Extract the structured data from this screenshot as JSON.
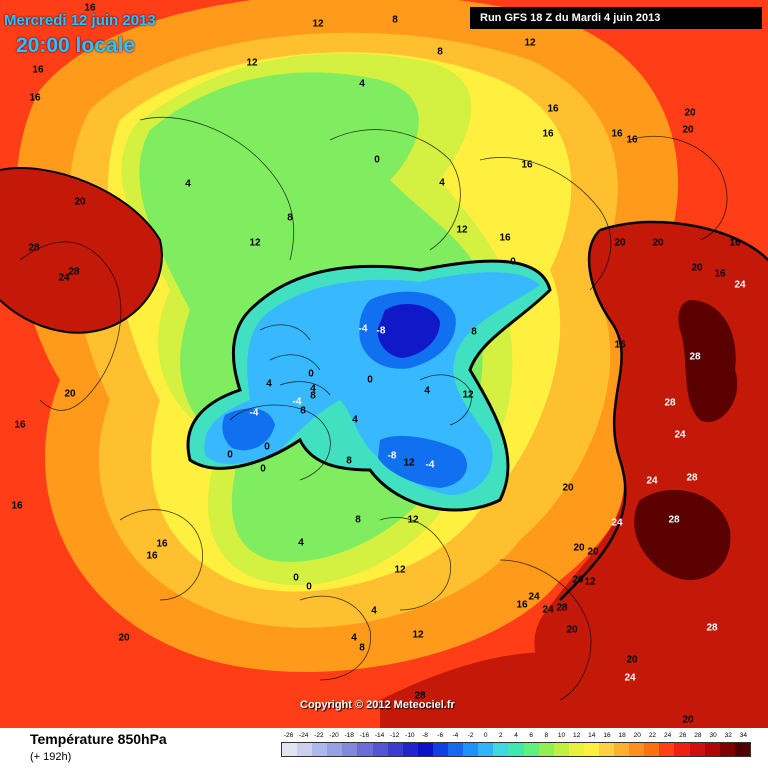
{
  "header": {
    "date": "Mercredi 12 juin 2013",
    "time": "20:00 locale",
    "run": "Run GFS 18 Z du Mardi 4 juin 2013"
  },
  "copyright": "Copyright © 2012 Meteociel.fr",
  "legend": {
    "title": "Température 850hPa",
    "lead": "(+ 192h)",
    "ticks": [
      "-26",
      "-24",
      "-22",
      "-20",
      "-18",
      "-16",
      "-14",
      "-12",
      "-10",
      "-8",
      "-6",
      "-4",
      "-2",
      "0",
      "2",
      "4",
      "6",
      "8",
      "10",
      "12",
      "14",
      "16",
      "18",
      "20",
      "22",
      "24",
      "26",
      "28",
      "30",
      "32",
      "34"
    ],
    "colors": [
      "#e4e4f0",
      "#ccd0ec",
      "#b0b8e8",
      "#98a0e4",
      "#8488dc",
      "#6c6cd8",
      "#5454d4",
      "#3c3cd0",
      "#2424cc",
      "#0c10c8",
      "#1040e0",
      "#1868f0",
      "#2090ff",
      "#30b4ff",
      "#40d8e0",
      "#40e8b0",
      "#60f080",
      "#90f050",
      "#c0f040",
      "#e8f040",
      "#fff040",
      "#ffd040",
      "#ffb030",
      "#ff9020",
      "#ff7010",
      "#ff4010",
      "#f02010",
      "#d01010",
      "#b00808",
      "#800000",
      "#500000"
    ]
  },
  "map": {
    "colors": {
      "hot": "#c41808",
      "very_hot": "#5a0000",
      "warm_red": "#ff3e18",
      "orange": "#ff9a1a",
      "light_orange": "#ffc030",
      "yellow": "#fff040",
      "yellow_green": "#d4f040",
      "green": "#80ec60",
      "aqua": "#40e0c0",
      "light_blue": "#38b8ff",
      "blue": "#1070f0",
      "deep_blue": "#1018c8"
    },
    "labels": [
      {
        "text": "16"
      },
      {
        "text": "12"
      },
      {
        "text": "8"
      },
      {
        "text": "8"
      },
      {
        "text": "12"
      },
      {
        "text": "16"
      },
      {
        "text": "16"
      },
      {
        "text": "12"
      },
      {
        "text": "4"
      },
      {
        "text": "20"
      },
      {
        "text": "20"
      },
      {
        "text": "16"
      },
      {
        "text": "16"
      },
      {
        "text": "16"
      },
      {
        "text": "0"
      },
      {
        "text": "4"
      },
      {
        "text": "12"
      },
      {
        "text": "16"
      },
      {
        "text": "4"
      },
      {
        "text": "20"
      },
      {
        "text": "8"
      },
      {
        "text": "12"
      },
      {
        "text": "28"
      },
      {
        "text": "24"
      },
      {
        "text": "28"
      },
      {
        "text": "20"
      },
      {
        "text": "20"
      },
      {
        "text": "16"
      },
      {
        "text": "20"
      },
      {
        "text": "24"
      },
      {
        "text": "16"
      },
      {
        "text": "0"
      },
      {
        "text": "-4"
      },
      {
        "text": "-8"
      },
      {
        "text": "8"
      },
      {
        "text": "28"
      },
      {
        "text": "16"
      },
      {
        "text": "4"
      },
      {
        "text": "4"
      },
      {
        "text": "0"
      },
      {
        "text": "4"
      },
      {
        "text": "20"
      },
      {
        "text": "12"
      },
      {
        "text": "-4"
      },
      {
        "text": "0"
      },
      {
        "text": "0"
      },
      {
        "text": "8"
      },
      {
        "text": "4"
      },
      {
        "text": "-8"
      },
      {
        "text": "-4"
      },
      {
        "text": "28"
      },
      {
        "text": "24"
      },
      {
        "text": "16"
      },
      {
        "text": "8"
      },
      {
        "text": "12"
      },
      {
        "text": "24"
      },
      {
        "text": "28"
      },
      {
        "text": "16"
      },
      {
        "text": "4"
      },
      {
        "text": "20"
      },
      {
        "text": "16"
      },
      {
        "text": "0"
      },
      {
        "text": "8"
      },
      {
        "text": "24"
      },
      {
        "text": "20"
      },
      {
        "text": "20"
      },
      {
        "text": "12"
      },
      {
        "text": "28"
      },
      {
        "text": "20"
      },
      {
        "text": "24"
      },
      {
        "text": "24"
      },
      {
        "text": "28"
      },
      {
        "text": "20"
      },
      {
        "text": "28"
      },
      {
        "text": "28"
      },
      {
        "text": "20"
      },
      {
        "text": "24"
      },
      {
        "text": "20"
      },
      {
        "text": "8"
      },
      {
        "text": "12"
      },
      {
        "text": "0"
      },
      {
        "text": "12"
      },
      {
        "text": "16"
      },
      {
        "text": "20"
      },
      {
        "text": "0"
      },
      {
        "text": "4"
      },
      {
        "text": "8"
      },
      {
        "text": "4"
      },
      {
        "text": "-4"
      },
      {
        "text": "0"
      },
      {
        "text": "12"
      },
      {
        "text": "16"
      },
      {
        "text": "16"
      },
      {
        "text": "16"
      }
    ]
  }
}
